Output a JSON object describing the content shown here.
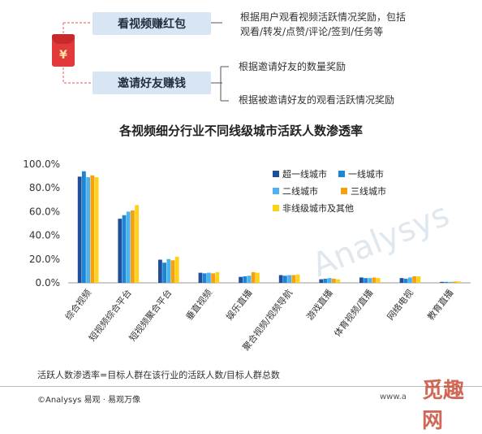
{
  "header": {
    "red_packet_symbol": "¥",
    "item1": {
      "label": "看视频赚红包",
      "description": "根据用户观看视频活跃情况奖励，包括观看/转发/点赞/评论/签到/任务等",
      "desc_line1": "根据用户观看视频活跃情况奖励，包括",
      "desc_line2": "观看/转发/点赞/评论/签到/任务等"
    },
    "item2": {
      "label": "邀请好友赚钱",
      "desc_line1": "根据邀请好友的数量奖励",
      "desc_line2": "根据被邀请好友的观看活跃情况奖励"
    }
  },
  "chart_data": {
    "type": "bar",
    "title": "各视频细分行业不同线级城市活跃人数渗透率",
    "ylim": [
      0,
      100
    ],
    "y_ticks": [
      "0.0%",
      "20.0%",
      "40.0%",
      "60.0%",
      "80.0%",
      "100.0%"
    ],
    "grid": false,
    "legend_position": "top-right",
    "categories": [
      "综合视频",
      "短视频综合平台",
      "短视频聚合平台",
      "垂直视频",
      "娱乐直播",
      "聚合视频/视频导航",
      "游戏直播",
      "体育视频/直播",
      "网络电视",
      "教育直播"
    ],
    "series": [
      {
        "name": "超一线城市",
        "color": "#1f4e9a",
        "values": [
          89.5,
          54.0,
          19.5,
          8.5,
          5.0,
          6.5,
          3.0,
          4.5,
          4.0,
          0.8
        ]
      },
      {
        "name": "一线城市",
        "color": "#1a86d6",
        "values": [
          94.0,
          57.0,
          17.0,
          8.0,
          5.5,
          6.0,
          3.5,
          4.0,
          3.5,
          0.8
        ]
      },
      {
        "name": "二线城市",
        "color": "#4db3ee",
        "values": [
          89.0,
          60.0,
          20.0,
          8.5,
          6.0,
          6.5,
          4.0,
          4.0,
          4.5,
          0.8
        ]
      },
      {
        "name": "三线城市",
        "color": "#f5a00c",
        "values": [
          90.5,
          61.0,
          19.0,
          8.0,
          9.0,
          6.5,
          3.5,
          4.5,
          5.5,
          1.0
        ]
      },
      {
        "name": "非线级城市及其他",
        "color": "#ffd11a",
        "values": [
          89.0,
          65.5,
          22.0,
          9.0,
          8.5,
          7.0,
          3.0,
          4.0,
          5.5,
          1.2
        ]
      }
    ]
  },
  "note": "活跃人数渗透率=目标人群在该行业的活跃人数/目标人群总数",
  "watermark": "Analysys",
  "footer_left": "©Analysys 易观 · 易观万像",
  "footer_right": "www.a",
  "stamp": "觅趣网"
}
